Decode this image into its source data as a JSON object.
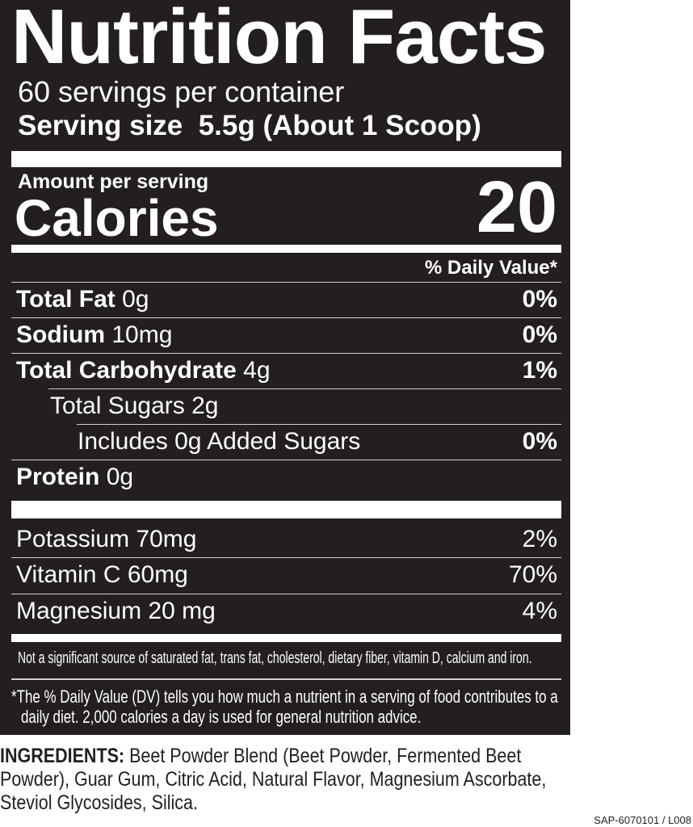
{
  "title": "Nutrition Facts",
  "servings_per_container": "60 servings per container",
  "serving_size_label": "Serving size",
  "serving_size_value": "5.5g (About 1 Scoop)",
  "amount_per_serving": "Amount per serving",
  "calories_label": "Calories",
  "calories_value": "20",
  "daily_value_header": "% Daily Value*",
  "nutrients": [
    {
      "name": "Total Fat",
      "amount": "0g",
      "dv": "0%"
    },
    {
      "name": "Sodium",
      "amount": "10mg",
      "dv": "0%"
    },
    {
      "name": "Total Carbohydrate",
      "amount": "4g",
      "dv": "1%"
    },
    {
      "name": "Total Sugars 2g",
      "amount": "",
      "dv": ""
    },
    {
      "name": "Includes 0g Added Sugars",
      "amount": "",
      "dv": "0%"
    },
    {
      "name": "Protein",
      "amount": "0g",
      "dv": ""
    }
  ],
  "vitamins": [
    {
      "name": "Potassium 70mg",
      "dv": "2%"
    },
    {
      "name": "Vitamin C 60mg",
      "dv": "70%"
    },
    {
      "name": "Magnesium 20 mg",
      "dv": "4%"
    }
  ],
  "not_significant": "Not a significant source of saturated fat, trans fat, cholesterol, dietary fiber, vitamin D, calcium and iron.",
  "footnote_line1": "*The % Daily Value (DV) tells you how much a nutrient in a serving of food contributes to a",
  "footnote_line2": "daily diet. 2,000 calories a day is used for general nutrition advice.",
  "ingredients_label": "INGREDIENTS:",
  "ingredients_line1": "Beet Powder Blend (Beet Powder, Fermented Beet",
  "ingredients_line2": "Powder), Guar Gum, Citric Acid, Natural Flavor, Magnesium Ascorbate,",
  "ingredients_line3": "Steviol Glycosides, Silica.",
  "code": "SAP-6070101 / L008",
  "colors": {
    "panel": "#231f20",
    "text": "#ffffff"
  }
}
